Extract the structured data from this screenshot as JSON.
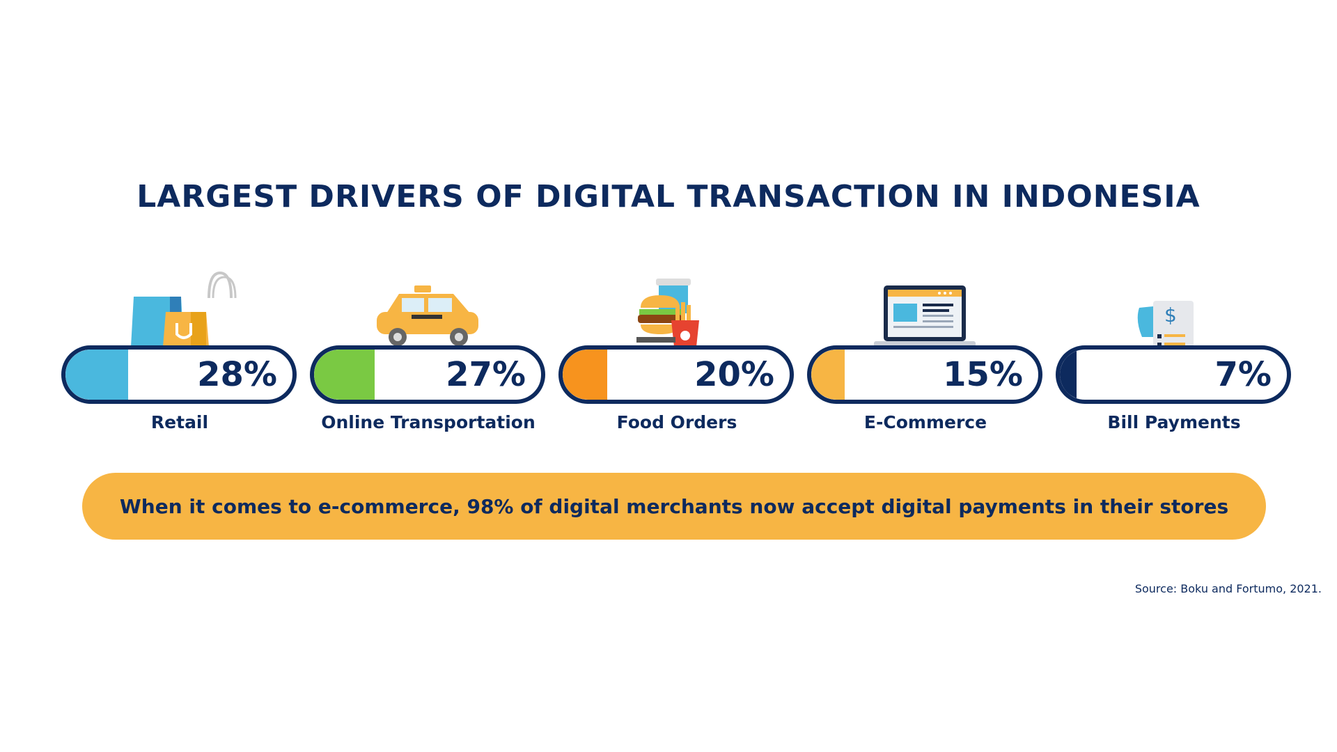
{
  "chart_data": {
    "type": "bar",
    "title": "LARGEST DRIVERS OF DIGITAL TRANSACTION IN INDONESIA",
    "categories": [
      "Retail",
      "Online Transportation",
      "Food Orders",
      "E-Commerce",
      "Bill Payments"
    ],
    "values": [
      28,
      27,
      20,
      15,
      7
    ],
    "value_labels": [
      "28%",
      "27%",
      "20%",
      "15%",
      "7%"
    ],
    "unit": "%",
    "ylim": [
      0,
      100
    ],
    "colors": [
      "#4ab8de",
      "#7ac943",
      "#f7931e",
      "#f7b544",
      "#0d2a5e"
    ],
    "icons": [
      "shopping-bags-icon",
      "taxi-icon",
      "fast-food-icon",
      "laptop-icon",
      "bill-receipt-icon"
    ]
  },
  "callout": "When it comes to e-commerce, 98% of digital merchants now accept digital payments in their stores",
  "source": "Source: Boku and Fortumo, 2021."
}
